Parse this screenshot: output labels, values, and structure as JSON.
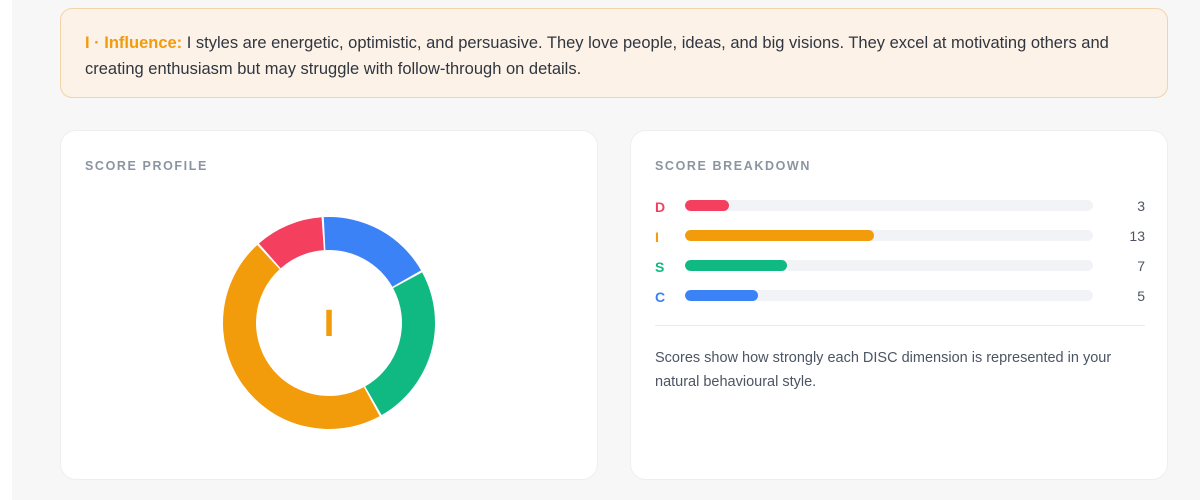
{
  "callout": {
    "lead": "I · Influence:",
    "text": " I styles are energetic, optimistic, and persuasive. They love people, ideas, and big visions. They excel at motivating others and creating enthusiasm but may struggle with follow-through on details."
  },
  "score_profile": {
    "title": "SCORE PROFILE",
    "center_label": "I"
  },
  "score_breakdown": {
    "title": "SCORE BREAKDOWN",
    "max": 28,
    "rows": [
      {
        "letter": "D",
        "value": 3,
        "color": "#f43f5e"
      },
      {
        "letter": "I",
        "value": 13,
        "color": "#f29b0b"
      },
      {
        "letter": "S",
        "value": 7,
        "color": "#10b981"
      },
      {
        "letter": "C",
        "value": 5,
        "color": "#3b82f6"
      }
    ],
    "note": "Scores show how strongly each DISC dimension is represented in your natural behavioural style."
  },
  "chart_data": {
    "type": "pie",
    "title": "",
    "categories": [
      "D",
      "I",
      "S",
      "C"
    ],
    "values": [
      3,
      13,
      7,
      5
    ],
    "colors": [
      "#f43f5e",
      "#f29b0b",
      "#10b981",
      "#3b82f6"
    ],
    "center_label": "I"
  }
}
